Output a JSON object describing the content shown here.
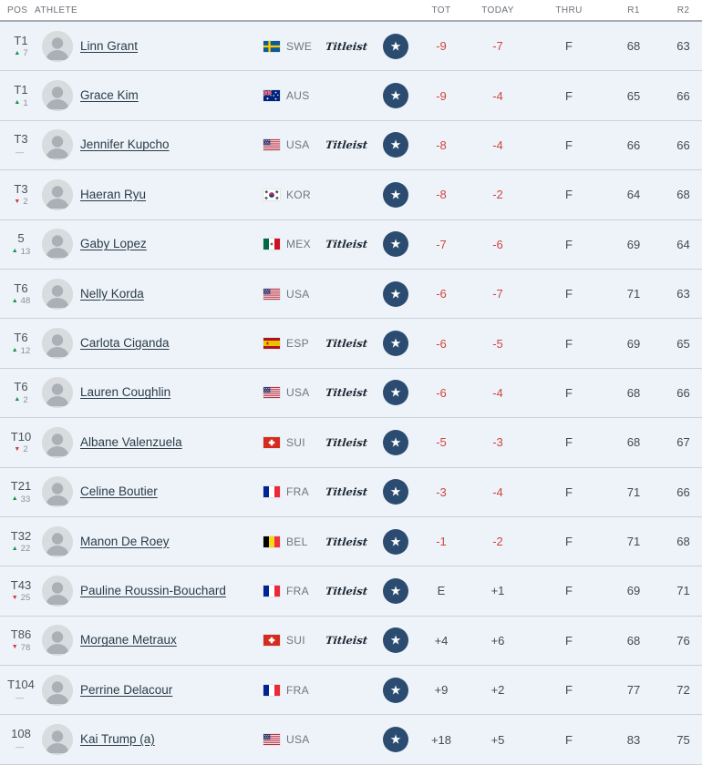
{
  "table": {
    "headers": {
      "pos": "POS",
      "athlete": "ATHLETE",
      "tot": "TOT",
      "today": "TODAY",
      "thru": "THRU",
      "r1": "R1",
      "r2": "R2"
    }
  },
  "sponsor": {
    "label": "Titleist"
  },
  "icons": {
    "star": "★",
    "move_up": "▲",
    "move_down": "▼",
    "move_none": "—"
  },
  "colors": {
    "row_bg": "#edf3f8",
    "star_badge": "#2b4c70",
    "score_under_par": "#d0463f",
    "move_up": "#15914a",
    "move_down": "#cc3a3f",
    "name_link": "#2c3b49"
  },
  "rows": [
    {
      "pos": "T1",
      "move_dir": "up",
      "move_val": "7",
      "name": "Linn Grant",
      "country": "SWE",
      "sponsor": true,
      "starred": true,
      "tot": "-9",
      "today": "-7",
      "thru": "F",
      "r1": "68",
      "r2": "63"
    },
    {
      "pos": "T1",
      "move_dir": "up",
      "move_val": "1",
      "name": "Grace Kim",
      "country": "AUS",
      "sponsor": false,
      "starred": true,
      "tot": "-9",
      "today": "-4",
      "thru": "F",
      "r1": "65",
      "r2": "66"
    },
    {
      "pos": "T3",
      "move_dir": "none",
      "move_val": "",
      "name": "Jennifer Kupcho",
      "country": "USA",
      "sponsor": true,
      "starred": true,
      "tot": "-8",
      "today": "-4",
      "thru": "F",
      "r1": "66",
      "r2": "66"
    },
    {
      "pos": "T3",
      "move_dir": "down",
      "move_val": "2",
      "name": "Haeran Ryu",
      "country": "KOR",
      "sponsor": false,
      "starred": true,
      "tot": "-8",
      "today": "-2",
      "thru": "F",
      "r1": "64",
      "r2": "68"
    },
    {
      "pos": "5",
      "move_dir": "up",
      "move_val": "13",
      "name": "Gaby Lopez",
      "country": "MEX",
      "sponsor": true,
      "starred": true,
      "tot": "-7",
      "today": "-6",
      "thru": "F",
      "r1": "69",
      "r2": "64"
    },
    {
      "pos": "T6",
      "move_dir": "up",
      "move_val": "48",
      "name": "Nelly Korda",
      "country": "USA",
      "sponsor": false,
      "starred": true,
      "tot": "-6",
      "today": "-7",
      "thru": "F",
      "r1": "71",
      "r2": "63"
    },
    {
      "pos": "T6",
      "move_dir": "up",
      "move_val": "12",
      "name": "Carlota Ciganda",
      "country": "ESP",
      "sponsor": true,
      "starred": true,
      "tot": "-6",
      "today": "-5",
      "thru": "F",
      "r1": "69",
      "r2": "65"
    },
    {
      "pos": "T6",
      "move_dir": "up",
      "move_val": "2",
      "name": "Lauren Coughlin",
      "country": "USA",
      "sponsor": true,
      "starred": true,
      "tot": "-6",
      "today": "-4",
      "thru": "F",
      "r1": "68",
      "r2": "66"
    },
    {
      "pos": "T10",
      "move_dir": "down",
      "move_val": "2",
      "name": "Albane Valenzuela",
      "country": "SUI",
      "sponsor": true,
      "starred": true,
      "tot": "-5",
      "today": "-3",
      "thru": "F",
      "r1": "68",
      "r2": "67"
    },
    {
      "pos": "T21",
      "move_dir": "up",
      "move_val": "33",
      "name": "Celine Boutier",
      "country": "FRA",
      "sponsor": true,
      "starred": true,
      "tot": "-3",
      "today": "-4",
      "thru": "F",
      "r1": "71",
      "r2": "66"
    },
    {
      "pos": "T32",
      "move_dir": "up",
      "move_val": "22",
      "name": "Manon De Roey",
      "country": "BEL",
      "sponsor": true,
      "starred": true,
      "tot": "-1",
      "today": "-2",
      "thru": "F",
      "r1": "71",
      "r2": "68"
    },
    {
      "pos": "T43",
      "move_dir": "down",
      "move_val": "25",
      "name": "Pauline Roussin-Bouchard",
      "country": "FRA",
      "sponsor": true,
      "starred": true,
      "tot": "E",
      "today": "+1",
      "thru": "F",
      "r1": "69",
      "r2": "71"
    },
    {
      "pos": "T86",
      "move_dir": "down",
      "move_val": "78",
      "name": "Morgane Metraux",
      "country": "SUI",
      "sponsor": true,
      "starred": true,
      "tot": "+4",
      "today": "+6",
      "thru": "F",
      "r1": "68",
      "r2": "76"
    },
    {
      "pos": "T104",
      "move_dir": "none",
      "move_val": "",
      "name": "Perrine Delacour",
      "country": "FRA",
      "sponsor": false,
      "starred": true,
      "tot": "+9",
      "today": "+2",
      "thru": "F",
      "r1": "77",
      "r2": "72"
    },
    {
      "pos": "108",
      "move_dir": "none",
      "move_val": "",
      "name": "Kai Trump (a)",
      "country": "USA",
      "sponsor": false,
      "starred": true,
      "tot": "+18",
      "today": "+5",
      "thru": "F",
      "r1": "83",
      "r2": "75"
    }
  ]
}
